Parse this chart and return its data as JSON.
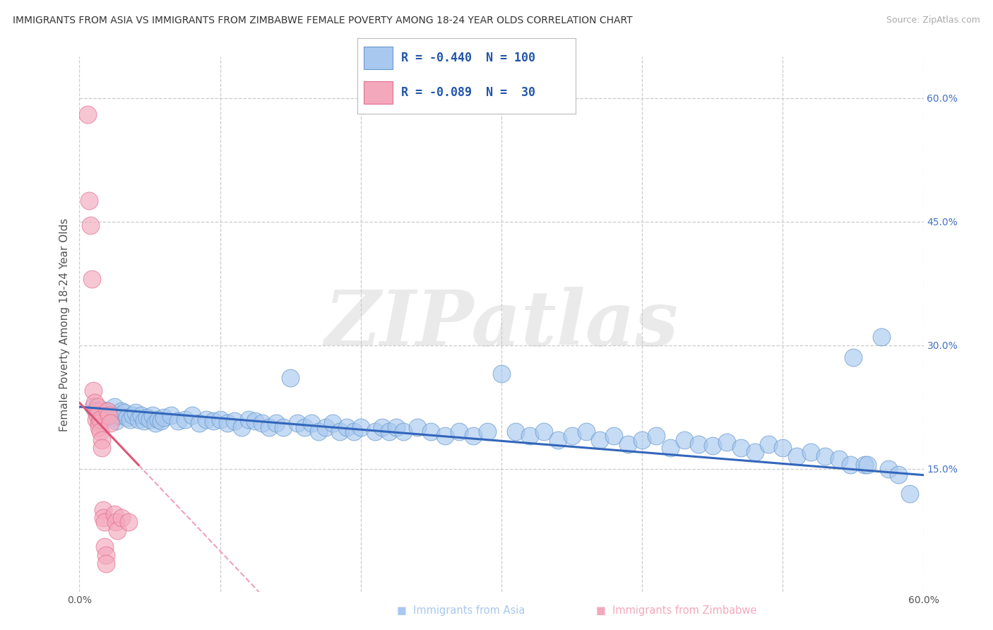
{
  "title": "IMMIGRANTS FROM ASIA VS IMMIGRANTS FROM ZIMBABWE FEMALE POVERTY AMONG 18-24 YEAR OLDS CORRELATION CHART",
  "source": "Source: ZipAtlas.com",
  "ylabel": "Female Poverty Among 18-24 Year Olds",
  "xlim": [
    0.0,
    0.6
  ],
  "ylim": [
    0.0,
    0.65
  ],
  "xtick_positions": [
    0.0,
    0.1,
    0.2,
    0.3,
    0.4,
    0.5,
    0.6
  ],
  "ytick_positions": [
    0.15,
    0.3,
    0.45,
    0.6
  ],
  "ytick_labels_right": [
    "15.0%",
    "30.0%",
    "45.0%",
    "60.0%"
  ],
  "legend_r_asia": "-0.440",
  "legend_n_asia": "100",
  "legend_r_zimb": "-0.089",
  "legend_n_zimb": " 30",
  "asia_color": "#A8C8EF",
  "zimb_color": "#F4A8BC",
  "asia_edge_color": "#6699CC",
  "zimb_edge_color": "#E07090",
  "asia_line_color": "#3366BB",
  "zimb_line_color": "#DD5577",
  "zimb_line_dashed_color": "#F0A0B8",
  "trend_asia_slope": -0.138,
  "trend_asia_intercept": 0.225,
  "trend_zimb_slope": -1.8,
  "trend_zimb_intercept": 0.23,
  "trend_zimb_solid_end": 0.042,
  "watermark": "ZIPatlas",
  "background_color": "#ffffff",
  "grid_color": "#CCCCCC",
  "asia_scatter": [
    [
      0.01,
      0.225
    ],
    [
      0.012,
      0.22
    ],
    [
      0.014,
      0.218
    ],
    [
      0.015,
      0.215
    ],
    [
      0.016,
      0.222
    ],
    [
      0.018,
      0.218
    ],
    [
      0.02,
      0.22
    ],
    [
      0.022,
      0.216
    ],
    [
      0.024,
      0.212
    ],
    [
      0.025,
      0.225
    ],
    [
      0.026,
      0.208
    ],
    [
      0.028,
      0.215
    ],
    [
      0.03,
      0.22
    ],
    [
      0.032,
      0.218
    ],
    [
      0.034,
      0.212
    ],
    [
      0.036,
      0.21
    ],
    [
      0.038,
      0.215
    ],
    [
      0.04,
      0.218
    ],
    [
      0.042,
      0.21
    ],
    [
      0.044,
      0.215
    ],
    [
      0.046,
      0.208
    ],
    [
      0.048,
      0.212
    ],
    [
      0.05,
      0.21
    ],
    [
      0.052,
      0.215
    ],
    [
      0.054,
      0.205
    ],
    [
      0.056,
      0.21
    ],
    [
      0.058,
      0.208
    ],
    [
      0.06,
      0.212
    ],
    [
      0.065,
      0.215
    ],
    [
      0.07,
      0.208
    ],
    [
      0.075,
      0.21
    ],
    [
      0.08,
      0.215
    ],
    [
      0.085,
      0.205
    ],
    [
      0.09,
      0.21
    ],
    [
      0.095,
      0.208
    ],
    [
      0.1,
      0.21
    ],
    [
      0.105,
      0.205
    ],
    [
      0.11,
      0.208
    ],
    [
      0.115,
      0.2
    ],
    [
      0.12,
      0.21
    ],
    [
      0.125,
      0.208
    ],
    [
      0.13,
      0.205
    ],
    [
      0.135,
      0.2
    ],
    [
      0.14,
      0.205
    ],
    [
      0.145,
      0.2
    ],
    [
      0.15,
      0.26
    ],
    [
      0.155,
      0.205
    ],
    [
      0.16,
      0.2
    ],
    [
      0.165,
      0.205
    ],
    [
      0.17,
      0.195
    ],
    [
      0.175,
      0.2
    ],
    [
      0.18,
      0.205
    ],
    [
      0.185,
      0.195
    ],
    [
      0.19,
      0.2
    ],
    [
      0.195,
      0.195
    ],
    [
      0.2,
      0.2
    ],
    [
      0.21,
      0.195
    ],
    [
      0.215,
      0.2
    ],
    [
      0.22,
      0.195
    ],
    [
      0.225,
      0.2
    ],
    [
      0.23,
      0.195
    ],
    [
      0.24,
      0.2
    ],
    [
      0.25,
      0.195
    ],
    [
      0.26,
      0.19
    ],
    [
      0.27,
      0.195
    ],
    [
      0.28,
      0.19
    ],
    [
      0.29,
      0.195
    ],
    [
      0.3,
      0.265
    ],
    [
      0.31,
      0.195
    ],
    [
      0.32,
      0.19
    ],
    [
      0.33,
      0.195
    ],
    [
      0.34,
      0.185
    ],
    [
      0.35,
      0.19
    ],
    [
      0.36,
      0.195
    ],
    [
      0.37,
      0.185
    ],
    [
      0.38,
      0.19
    ],
    [
      0.39,
      0.18
    ],
    [
      0.4,
      0.185
    ],
    [
      0.41,
      0.19
    ],
    [
      0.42,
      0.175
    ],
    [
      0.43,
      0.185
    ],
    [
      0.44,
      0.18
    ],
    [
      0.45,
      0.178
    ],
    [
      0.46,
      0.182
    ],
    [
      0.47,
      0.175
    ],
    [
      0.48,
      0.17
    ],
    [
      0.49,
      0.18
    ],
    [
      0.5,
      0.175
    ],
    [
      0.51,
      0.165
    ],
    [
      0.52,
      0.17
    ],
    [
      0.53,
      0.165
    ],
    [
      0.54,
      0.162
    ],
    [
      0.548,
      0.155
    ],
    [
      0.55,
      0.285
    ],
    [
      0.558,
      0.155
    ],
    [
      0.56,
      0.155
    ],
    [
      0.57,
      0.31
    ],
    [
      0.575,
      0.15
    ],
    [
      0.582,
      0.143
    ],
    [
      0.59,
      0.12
    ]
  ],
  "zimb_scatter": [
    [
      0.006,
      0.58
    ],
    [
      0.007,
      0.475
    ],
    [
      0.008,
      0.445
    ],
    [
      0.009,
      0.38
    ],
    [
      0.01,
      0.245
    ],
    [
      0.011,
      0.23
    ],
    [
      0.012,
      0.22
    ],
    [
      0.012,
      0.21
    ],
    [
      0.013,
      0.225
    ],
    [
      0.013,
      0.215
    ],
    [
      0.014,
      0.205
    ],
    [
      0.014,
      0.2
    ],
    [
      0.015,
      0.21
    ],
    [
      0.015,
      0.195
    ],
    [
      0.016,
      0.185
    ],
    [
      0.016,
      0.175
    ],
    [
      0.017,
      0.1
    ],
    [
      0.017,
      0.09
    ],
    [
      0.018,
      0.085
    ],
    [
      0.018,
      0.055
    ],
    [
      0.019,
      0.045
    ],
    [
      0.019,
      0.035
    ],
    [
      0.02,
      0.22
    ],
    [
      0.021,
      0.215
    ],
    [
      0.022,
      0.205
    ],
    [
      0.025,
      0.095
    ],
    [
      0.026,
      0.085
    ],
    [
      0.027,
      0.075
    ],
    [
      0.03,
      0.09
    ],
    [
      0.035,
      0.085
    ]
  ]
}
